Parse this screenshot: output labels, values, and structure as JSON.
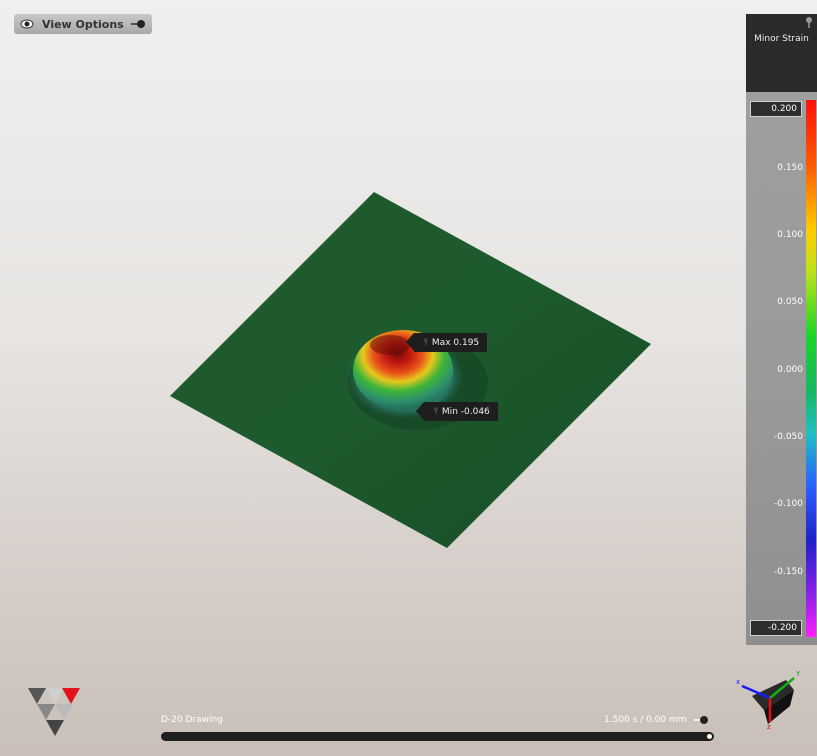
{
  "view_options": {
    "label": "View Options"
  },
  "legend": {
    "title": "Minor Strain",
    "max_value": "0.200",
    "min_value": "-0.200",
    "ticks": [
      "0.150",
      "0.100",
      "0.050",
      "0.000",
      "-0.050",
      "-0.100",
      "-0.150"
    ]
  },
  "annotations": {
    "max": "Max 0.195",
    "min": "Min -0.046"
  },
  "timeline": {
    "sequence": "D-20 Drawing",
    "time": "1.500 s / 0.00 mm",
    "position": 1.0
  },
  "icons": {
    "view": "eye-icon",
    "pin": "pin-icon",
    "logo": "triangle-logo-icon",
    "axes": "axis-triad-icon"
  }
}
